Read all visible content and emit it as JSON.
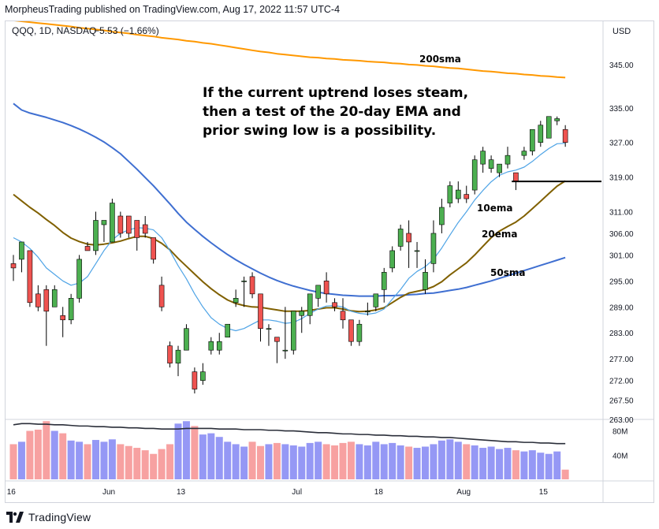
{
  "header": {
    "published_line": "MorpheusTrading published on TradingView.com, Aug 17, 2022 11:57 UTC-4"
  },
  "footer": {
    "brand": "TradingView"
  },
  "chart_data": {
    "type": "candlestick",
    "symbol_line": "QQQ, 1D, NASDAQ",
    "change_text": "−5.53 (−1.66%)",
    "currency": "USD",
    "y_ticks": [
      345.0,
      335.0,
      327.0,
      319.0,
      311.0,
      306.0,
      301.0,
      295.0,
      289.0,
      283.0,
      277.0,
      272.0,
      267.5,
      263.0
    ],
    "ylim": [
      263,
      355
    ],
    "volume_ticks": [
      "80M",
      "40M"
    ],
    "volume_max": 95,
    "x_ticks": [
      {
        "label": "16",
        "i": -0.6
      },
      {
        "label": "Jun",
        "i": 11
      },
      {
        "label": "13",
        "i": 20
      },
      {
        "label": "Jul",
        "i": 34
      },
      {
        "label": "18",
        "i": 44
      },
      {
        "label": "Aug",
        "i": 54
      },
      {
        "label": "15",
        "i": 64
      }
    ],
    "candles": [
      {
        "o": 299,
        "h": 301,
        "l": 295,
        "c": 298
      },
      {
        "o": 300,
        "h": 304,
        "l": 297,
        "c": 304
      },
      {
        "o": 302,
        "h": 302,
        "l": 289,
        "c": 290
      },
      {
        "o": 292,
        "h": 294,
        "l": 288,
        "c": 289
      },
      {
        "o": 293,
        "h": 294,
        "l": 280,
        "c": 288
      },
      {
        "o": 289,
        "h": 294,
        "l": 289,
        "c": 293
      },
      {
        "o": 287,
        "h": 289,
        "l": 282,
        "c": 286
      },
      {
        "o": 286,
        "h": 292,
        "l": 285,
        "c": 291
      },
      {
        "o": 291,
        "h": 301,
        "l": 290,
        "c": 300
      },
      {
        "o": 303,
        "h": 304,
        "l": 302,
        "c": 302
      },
      {
        "o": 302,
        "h": 311,
        "l": 301,
        "c": 309
      },
      {
        "o": 308,
        "h": 309,
        "l": 304,
        "c": 309
      },
      {
        "o": 304,
        "h": 314,
        "l": 304,
        "c": 313
      },
      {
        "o": 310,
        "h": 311,
        "l": 305,
        "c": 306
      },
      {
        "o": 310,
        "h": 310,
        "l": 305,
        "c": 306
      },
      {
        "o": 309,
        "h": 309,
        "l": 302,
        "c": 305
      },
      {
        "o": 308,
        "h": 310,
        "l": 305,
        "c": 306
      },
      {
        "o": 305,
        "h": 305,
        "l": 299,
        "c": 300
      },
      {
        "o": 294,
        "h": 296,
        "l": 288,
        "c": 289
      },
      {
        "o": 280,
        "h": 281,
        "l": 275,
        "c": 276
      },
      {
        "o": 276,
        "h": 280,
        "l": 273,
        "c": 279
      },
      {
        "o": 279,
        "h": 285,
        "l": 279,
        "c": 284
      },
      {
        "o": 274,
        "h": 275,
        "l": 269,
        "c": 270
      },
      {
        "o": 272,
        "h": 276,
        "l": 271,
        "c": 274
      },
      {
        "o": 279,
        "h": 282,
        "l": 278,
        "c": 281
      },
      {
        "o": 279,
        "h": 283,
        "l": 278,
        "c": 281
      },
      {
        "o": 282,
        "h": 285,
        "l": 282,
        "c": 285
      },
      {
        "o": 290,
        "h": 293,
        "l": 289,
        "c": 291
      },
      {
        "o": 295,
        "h": 296,
        "l": 289,
        "c": 295
      },
      {
        "o": 296,
        "h": 297,
        "l": 291,
        "c": 292
      },
      {
        "o": 292,
        "h": 292,
        "l": 281,
        "c": 284
      },
      {
        "o": 284,
        "h": 285,
        "l": 280,
        "c": 284
      },
      {
        "o": 282,
        "h": 282,
        "l": 276,
        "c": 281
      },
      {
        "o": 279,
        "h": 289,
        "l": 277,
        "c": 279
      },
      {
        "o": 279,
        "h": 288,
        "l": 278,
        "c": 288
      },
      {
        "o": 287,
        "h": 289,
        "l": 283,
        "c": 288
      },
      {
        "o": 287,
        "h": 292,
        "l": 285,
        "c": 292
      },
      {
        "o": 291,
        "h": 294,
        "l": 289,
        "c": 294
      },
      {
        "o": 295,
        "h": 297,
        "l": 290,
        "c": 292
      },
      {
        "o": 290,
        "h": 291,
        "l": 288,
        "c": 289
      },
      {
        "o": 288,
        "h": 291,
        "l": 284,
        "c": 286
      },
      {
        "o": 286,
        "h": 286,
        "l": 280,
        "c": 281
      },
      {
        "o": 281,
        "h": 286,
        "l": 280,
        "c": 285
      },
      {
        "o": 288,
        "h": 290,
        "l": 287,
        "c": 288
      },
      {
        "o": 289,
        "h": 292,
        "l": 288,
        "c": 292
      },
      {
        "o": 293,
        "h": 298,
        "l": 290,
        "c": 297
      },
      {
        "o": 298,
        "h": 303,
        "l": 297,
        "c": 302
      },
      {
        "o": 303,
        "h": 308,
        "l": 302,
        "c": 307
      },
      {
        "o": 306,
        "h": 309,
        "l": 298,
        "c": 304
      },
      {
        "o": 302,
        "h": 304,
        "l": 298,
        "c": 302
      },
      {
        "o": 293,
        "h": 300,
        "l": 292,
        "c": 297
      },
      {
        "o": 299,
        "h": 309,
        "l": 297,
        "c": 306
      },
      {
        "o": 308,
        "h": 314,
        "l": 306,
        "c": 312
      },
      {
        "o": 313,
        "h": 318,
        "l": 312,
        "c": 317
      },
      {
        "o": 314,
        "h": 318,
        "l": 313,
        "c": 316
      },
      {
        "o": 315,
        "h": 317,
        "l": 313,
        "c": 314
      },
      {
        "o": 316,
        "h": 324,
        "l": 315,
        "c": 323
      },
      {
        "o": 322,
        "h": 326,
        "l": 320,
        "c": 325
      },
      {
        "o": 321,
        "h": 324,
        "l": 320,
        "c": 323
      },
      {
        "o": 320,
        "h": 322,
        "l": 319,
        "c": 322
      },
      {
        "o": 322,
        "h": 326,
        "l": 321,
        "c": 324
      },
      {
        "o": 320,
        "h": 320,
        "l": 316,
        "c": 318
      },
      {
        "o": 324,
        "h": 326,
        "l": 323,
        "c": 325
      },
      {
        "o": 325,
        "h": 330,
        "l": 324,
        "c": 330
      },
      {
        "o": 327,
        "h": 332,
        "l": 326,
        "c": 331
      },
      {
        "o": 328,
        "h": 333,
        "l": 328,
        "c": 333
      },
      {
        "o": 332,
        "h": 333,
        "l": 331,
        "c": 332.5
      },
      {
        "o": 330,
        "h": 331,
        "l": 326,
        "c": 327
      }
    ],
    "volumes": [
      58,
      62,
      80,
      82,
      96,
      80,
      76,
      64,
      62,
      58,
      65,
      62,
      66,
      58,
      55,
      52,
      48,
      42,
      50,
      58,
      92,
      96,
      88,
      74,
      76,
      70,
      62,
      58,
      54,
      62,
      55,
      58,
      60,
      58,
      56,
      54,
      60,
      62,
      58,
      56,
      60,
      62,
      58,
      56,
      62,
      58,
      60,
      56,
      54,
      52,
      54,
      58,
      64,
      66,
      62,
      58,
      56,
      52,
      54,
      50,
      52,
      48,
      46,
      48,
      44,
      42,
      46,
      16
    ],
    "volume_ma": [
      90,
      92,
      92,
      91,
      91,
      90,
      90,
      89,
      88,
      88,
      87,
      87,
      86,
      86,
      85,
      85,
      84,
      84,
      83,
      83,
      83,
      84,
      84,
      84,
      84,
      83,
      83,
      83,
      82,
      82,
      82,
      81,
      81,
      80,
      80,
      79,
      78,
      77,
      77,
      76,
      75,
      75,
      74,
      74,
      73,
      73,
      72,
      72,
      71,
      71,
      70,
      70,
      69,
      69,
      68,
      67,
      66,
      65,
      64,
      63,
      62,
      62,
      61,
      61,
      60,
      60,
      59,
      59
    ],
    "sma200": [
      355.2,
      355,
      354.8,
      354.6,
      354.4,
      354.2,
      354,
      353.8,
      353.5,
      353.3,
      353.1,
      352.9,
      352.6,
      352.4,
      352.2,
      351.9,
      351.7,
      351.5,
      351.2,
      351,
      350.8,
      350.5,
      350.3,
      350,
      349.8,
      349.5,
      349.2,
      348.9,
      348.6,
      348.3,
      348,
      347.8,
      347.5,
      347.3,
      347.1,
      346.9,
      346.7,
      346.6,
      346.4,
      346.3,
      346.1,
      346,
      345.9,
      345.7,
      345.6,
      345.5,
      345.3,
      345.2,
      345,
      344.9,
      344.7,
      344.6,
      344.4,
      344.2,
      344.1,
      343.9,
      343.7,
      343.5,
      343.4,
      343.2,
      343,
      342.9,
      342.7,
      342.6,
      342.4,
      342.3,
      342.1,
      342
    ],
    "sma50": [
      336,
      334.5,
      333.8,
      333.3,
      332.8,
      332.2,
      331.6,
      330.9,
      330.1,
      329.2,
      328.2,
      327.1,
      325.8,
      324.4,
      322.6,
      320.8,
      318.9,
      317,
      314.9,
      312.8,
      310.6,
      308.6,
      306.9,
      305.3,
      303.8,
      302.4,
      301.1,
      299.9,
      298.8,
      297.8,
      296.8,
      295.9,
      295.1,
      294.4,
      293.8,
      293.3,
      292.8,
      292.4,
      292.1,
      291.9,
      291.7,
      291.6,
      291.5,
      291.5,
      291.5,
      291.6,
      291.6,
      291.7,
      291.8,
      291.9,
      292.1,
      292.2,
      292.5,
      292.8,
      293.1,
      293.5,
      294,
      294.5,
      295,
      295.6,
      296.2,
      296.8,
      297.4,
      298,
      298.6,
      299.2,
      299.8,
      300.4
    ],
    "ema20": [
      315,
      313.5,
      312,
      310.7,
      309.2,
      307.8,
      306.2,
      304.9,
      304.1,
      303.5,
      303.3,
      303.5,
      303.8,
      304.2,
      304.8,
      305.3,
      305.3,
      304.8,
      303.7,
      302.2,
      300.2,
      298.4,
      296.6,
      294.8,
      293.2,
      291.8,
      290.6,
      289.8,
      289.3,
      289,
      288.9,
      288.6,
      288.3,
      288,
      288,
      288,
      288.2,
      288.5,
      288.8,
      288.8,
      288.5,
      288.1,
      287.9,
      288,
      288.3,
      288.8,
      290,
      291.2,
      292.2,
      292.6,
      293,
      293.7,
      294.8,
      296.4,
      297.8,
      299.2,
      301,
      303,
      305,
      306.5,
      307.6,
      308.6,
      310,
      311.7,
      313.4,
      315.2,
      316.9,
      318.1
    ],
    "ema10": [
      305,
      304,
      302.5,
      300.5,
      298,
      296.5,
      295,
      294,
      294.5,
      296,
      299,
      302,
      304.5,
      306,
      306.8,
      307.3,
      307.2,
      306.8,
      305,
      302,
      298.5,
      295.5,
      292,
      289,
      286.5,
      285,
      284,
      283.5,
      284,
      285,
      286,
      286,
      285.7,
      285.2,
      285.4,
      286.3,
      287.5,
      288.5,
      289.2,
      289.3,
      289,
      288,
      287.5,
      287.3,
      287.6,
      288.5,
      290.8,
      293,
      295.6,
      297.2,
      298.3,
      300,
      302.6,
      305.6,
      308.5,
      311,
      313.7,
      315.9,
      317.9,
      319.4,
      320.2,
      320.6,
      321.3,
      322.6,
      324.2,
      325.6,
      326.7,
      326.8
    ],
    "support_level": 318,
    "annotations": {
      "comment": [
        "If the current uptrend loses steam,",
        "then a test of the 20-day EMA and",
        "prior swing low is a possibility."
      ],
      "sma200": "200sma",
      "ema10": "10ema",
      "ema20": "20ema",
      "sma50": "50sma"
    },
    "colors": {
      "up": "#26a69a",
      "up_body": "#4caf50",
      "down": "#ef5350",
      "vol_up": "#9598f5",
      "vol_down": "#f7a1a1",
      "sma200": "#ff9800",
      "sma50": "#3f6fd1",
      "ema20": "#806000",
      "ema10": "#4fa4e6"
    }
  }
}
